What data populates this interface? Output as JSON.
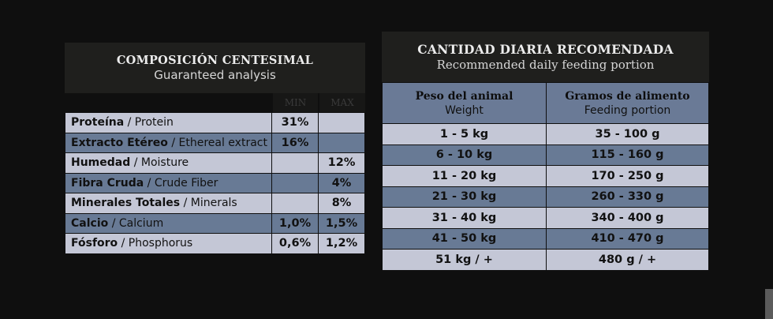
{
  "guaranteed_analysis": {
    "title_es": "COMPOSICIÓN CENTESIMAL",
    "title_en": "Guaranteed analysis",
    "col_min": "MIN",
    "col_max": "MAX",
    "rows": [
      {
        "label_es": "Proteína",
        "label_en": " / Protein",
        "min": "31%",
        "max": "",
        "shade": "light"
      },
      {
        "label_es": "Extracto Etéreo",
        "label_en": " / Ethereal extract",
        "min": "16%",
        "max": "",
        "shade": "dark"
      },
      {
        "label_es": "Humedad",
        "label_en": " / Moisture",
        "min": "",
        "max": "12%",
        "shade": "light"
      },
      {
        "label_es": "Fibra Cruda",
        "label_en": " / Crude Fiber",
        "min": "",
        "max": "4%",
        "shade": "dark"
      },
      {
        "label_es": "Minerales Totales",
        "label_en": " / Minerals",
        "min": "",
        "max": "8%",
        "shade": "light"
      },
      {
        "label_es": "Calcio",
        "label_en": " / Calcium",
        "min": "1,0%",
        "max": "1,5%",
        "shade": "dark"
      },
      {
        "label_es": "Fósforo",
        "label_en": " / Phosphorus",
        "min": "0,6%",
        "max": "1,2%",
        "shade": "light"
      }
    ]
  },
  "feeding": {
    "title_es": "CANTIDAD DIARIA RECOMENDADA",
    "title_en": "Recommended daily feeding portion",
    "col1_es": "Peso del animal",
    "col1_en": "Weight",
    "col2_es": "Gramos de alimento",
    "col2_en": "Feeding portion",
    "rows": [
      {
        "weight": "1 - 5 kg",
        "portion": "35 - 100 g",
        "shade": "light"
      },
      {
        "weight": "6 - 10 kg",
        "portion": "115 - 160 g",
        "shade": "dark"
      },
      {
        "weight": "11 - 20 kg",
        "portion": "170 - 250 g",
        "shade": "light"
      },
      {
        "weight": "21 - 30 kg",
        "portion": "260 - 330 g",
        "shade": "dark"
      },
      {
        "weight": "31 - 40 kg",
        "portion": "340 - 400 g",
        "shade": "light"
      },
      {
        "weight": "41 - 50 kg",
        "portion": "410 - 470 g",
        "shade": "dark"
      },
      {
        "weight": "51 kg / +",
        "portion": "480 g / +",
        "shade": "light"
      }
    ]
  },
  "colors": {
    "background": "#0f0f0f",
    "header": "#1f1f1d",
    "row_light": "#c4c7d6",
    "row_dark": "#687a95"
  }
}
